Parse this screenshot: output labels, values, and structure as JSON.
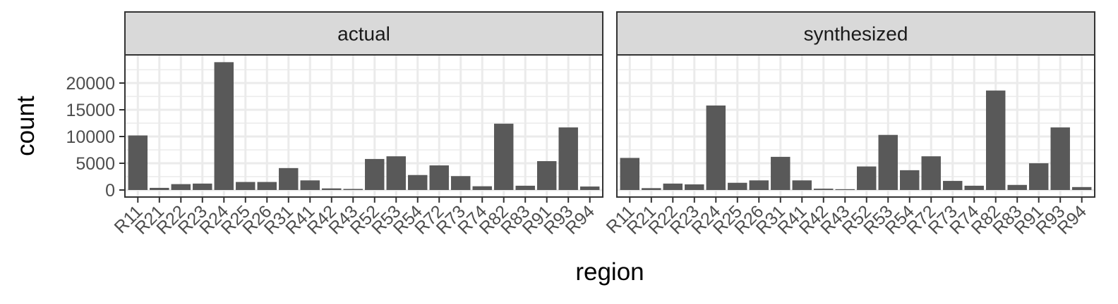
{
  "chart_data": {
    "type": "bar",
    "xlabel": "region",
    "ylabel": "count",
    "ylim": [
      0,
      25000
    ],
    "yticks": [
      0,
      5000,
      10000,
      15000,
      20000
    ],
    "yticklabels": [
      "0",
      "5000",
      "10000",
      "15000",
      "20000"
    ],
    "grid": true,
    "categories": [
      "R11",
      "R21",
      "R22",
      "R23",
      "R24",
      "R25",
      "R26",
      "R31",
      "R41",
      "R42",
      "R43",
      "R52",
      "R53",
      "R54",
      "R72",
      "R73",
      "R74",
      "R82",
      "R83",
      "R91",
      "R93",
      "R94"
    ],
    "panels": [
      {
        "title": "actual",
        "values": [
          10200,
          400,
          1100,
          1200,
          23900,
          1500,
          1500,
          4100,
          1800,
          300,
          200,
          5800,
          6300,
          2800,
          4600,
          2600,
          700,
          12400,
          800,
          5400,
          11700,
          650
        ]
      },
      {
        "title": "synthesized",
        "values": [
          6000,
          350,
          1200,
          1050,
          15800,
          1350,
          1800,
          6200,
          1800,
          250,
          150,
          4400,
          10300,
          3700,
          6300,
          1700,
          800,
          18600,
          950,
          5000,
          11700,
          550
        ]
      }
    ]
  }
}
